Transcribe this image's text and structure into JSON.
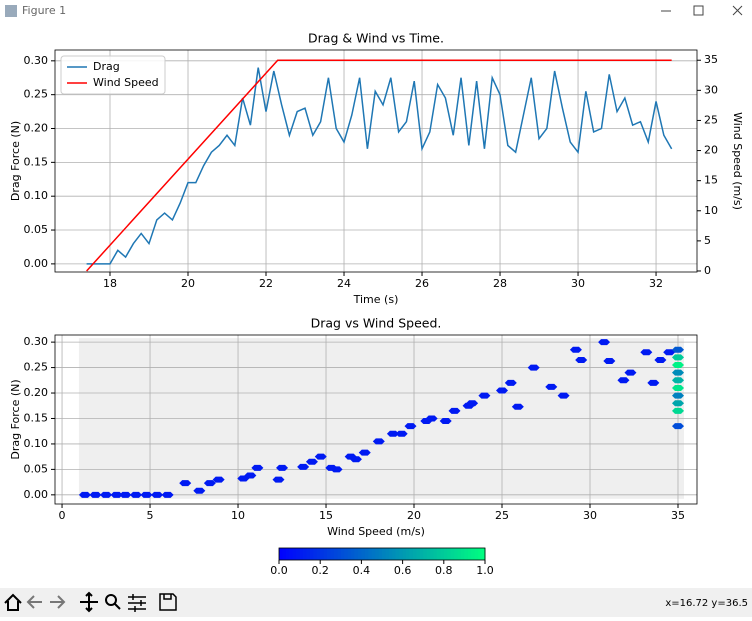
{
  "window_title": "Figure 1",
  "status": "x=16.72 y=36.5",
  "chart_data": [
    {
      "type": "line",
      "title": "Drag & Wind vs Time.",
      "x_label": "Time (s)",
      "y_label": "Drag Force (N)",
      "y2_label": "Wind Speed (m/s)",
      "grid": true,
      "legend": "upper left",
      "xlim": [
        16.59,
        33.05
      ],
      "xticks": [
        18,
        20,
        22,
        24,
        26,
        28,
        30,
        32
      ],
      "ylim": [
        -0.012,
        0.316
      ],
      "yticks": [
        {
          "value": 0,
          "label": "0.00"
        },
        {
          "value": 0.05,
          "label": "0.05"
        },
        {
          "value": 0.1,
          "label": "0.10"
        },
        {
          "value": 0.15,
          "label": "0.15"
        },
        {
          "value": 0.2,
          "label": "0.20"
        },
        {
          "value": 0.25,
          "label": "0.25"
        },
        {
          "value": 0.3,
          "label": "0.30"
        }
      ],
      "y2lim": [
        -0.17,
        36.7
      ],
      "y2ticks": [
        0,
        5,
        10,
        15,
        20,
        25,
        30,
        35
      ],
      "series": [
        {
          "name": "Drag",
          "color": "#1f77b4",
          "x": [
            17.4,
            17.6,
            17.8,
            18.0,
            18.2,
            18.4,
            18.6,
            18.8,
            19.0,
            19.2,
            19.4,
            19.6,
            19.8,
            20.0,
            20.2,
            20.4,
            20.6,
            20.8,
            21.0,
            21.2,
            21.4,
            21.6,
            21.8,
            22.0,
            22.2,
            22.4,
            22.6,
            22.8,
            23.0,
            23.2,
            23.4,
            23.6,
            23.8,
            24.0,
            24.2,
            24.4,
            24.6,
            24.8,
            25.0,
            25.2,
            25.4,
            25.6,
            25.8,
            26.0,
            26.2,
            26.4,
            26.6,
            26.8,
            27.0,
            27.2,
            27.4,
            27.6,
            27.8,
            28.0,
            28.2,
            28.4,
            28.6,
            28.8,
            29.0,
            29.2,
            29.4,
            29.6,
            29.8,
            30.0,
            30.2,
            30.4,
            30.6,
            30.8,
            31.0,
            31.2,
            31.4,
            31.6,
            31.8,
            32.0,
            32.2,
            32.4
          ],
          "values": [
            0,
            0,
            0,
            0,
            0.02,
            0.01,
            0.03,
            0.045,
            0.03,
            0.065,
            0.075,
            0.065,
            0.09,
            0.12,
            0.12,
            0.145,
            0.165,
            0.175,
            0.19,
            0.175,
            0.245,
            0.205,
            0.29,
            0.225,
            0.285,
            0.235,
            0.19,
            0.225,
            0.23,
            0.19,
            0.21,
            0.275,
            0.2,
            0.18,
            0.22,
            0.275,
            0.17,
            0.255,
            0.235,
            0.275,
            0.195,
            0.21,
            0.27,
            0.17,
            0.195,
            0.265,
            0.245,
            0.19,
            0.275,
            0.175,
            0.27,
            0.17,
            0.275,
            0.25,
            0.175,
            0.165,
            0.22,
            0.275,
            0.185,
            0.2,
            0.285,
            0.23,
            0.18,
            0.165,
            0.255,
            0.195,
            0.2,
            0.28,
            0.225,
            0.245,
            0.205,
            0.21,
            0.18,
            0.24,
            0.19,
            0.17
          ]
        },
        {
          "name": "Wind Speed",
          "color": "#ff0000",
          "axis": "y2",
          "x": [
            17.4,
            22.3,
            32.4
          ],
          "values": [
            0,
            35,
            35
          ]
        }
      ]
    },
    {
      "type": "hexbin",
      "title": "Drag vs Wind Speed.",
      "x_label": "Wind Speed (m/s)",
      "y_label": "Drag Force (N)",
      "grid": true,
      "empty_color": "#efefef",
      "colormap": "winter",
      "xlim": [
        -0.4,
        36.08
      ],
      "xticks": [
        0,
        5,
        10,
        15,
        20,
        25,
        30,
        35
      ],
      "ylim": [
        -0.018,
        0.314
      ],
      "yticks": [
        {
          "value": 0,
          "label": "0.00"
        },
        {
          "value": 0.05,
          "label": "0.05"
        },
        {
          "value": 0.1,
          "label": "0.10"
        },
        {
          "value": 0.15,
          "label": "0.15"
        },
        {
          "value": 0.2,
          "label": "0.20"
        },
        {
          "value": 0.25,
          "label": "0.25"
        },
        {
          "value": 0.3,
          "label": "0.30"
        }
      ],
      "x": [
        1.3,
        1.9,
        2.5,
        3.1,
        3.6,
        4.2,
        4.8,
        5.4,
        6.0,
        7.0,
        7.8,
        8.4,
        8.9,
        10.3,
        10.7,
        11.1,
        12.3,
        12.5,
        13.7,
        14.2,
        14.7,
        15.3,
        15.6,
        16.4,
        16.7,
        17.2,
        18.0,
        18.8,
        19.3,
        19.8,
        20.7,
        21.0,
        21.8,
        22.3,
        23.1,
        23.3,
        24.0,
        25.0,
        25.5,
        25.9,
        26.8,
        27.8,
        28.5,
        29.2,
        29.5,
        30.8,
        31.1,
        31.9,
        32.3,
        33.2,
        33.6,
        34.0,
        34.5,
        35,
        35,
        35,
        35,
        35,
        35,
        35,
        35,
        35,
        35
      ],
      "values": [
        0,
        0,
        0,
        0,
        0,
        0,
        0,
        0,
        0,
        0.023,
        0.008,
        0.023,
        0.03,
        0.032,
        0.038,
        0.053,
        0.03,
        0.053,
        0.055,
        0.065,
        0.075,
        0.053,
        0.05,
        0.075,
        0.07,
        0.083,
        0.105,
        0.12,
        0.12,
        0.135,
        0.145,
        0.15,
        0.145,
        0.165,
        0.175,
        0.18,
        0.195,
        0.205,
        0.22,
        0.173,
        0.25,
        0.212,
        0.195,
        0.285,
        0.265,
        0.3,
        0.263,
        0.225,
        0.24,
        0.28,
        0.22,
        0.265,
        0.28,
        0.285,
        0.27,
        0.255,
        0.24,
        0.225,
        0.21,
        0.195,
        0.18,
        0.165,
        0.135
      ],
      "c": [
        0.1,
        0.1,
        0.1,
        0.1,
        0.1,
        0.1,
        0.1,
        0.1,
        0.1,
        0.1,
        0.1,
        0.1,
        0.1,
        0.1,
        0.1,
        0.1,
        0.1,
        0.1,
        0.1,
        0.1,
        0.1,
        0.1,
        0.1,
        0.1,
        0.1,
        0.1,
        0.1,
        0.1,
        0.1,
        0.1,
        0.1,
        0.1,
        0.1,
        0.1,
        0.1,
        0.1,
        0.1,
        0.1,
        0.1,
        0.1,
        0.1,
        0.1,
        0.1,
        0.1,
        0.1,
        0.1,
        0.1,
        0.1,
        0.1,
        0.1,
        0.1,
        0.1,
        0.1,
        0.35,
        0.8,
        0.95,
        0.55,
        0.7,
        0.9,
        0.5,
        0.65,
        0.85,
        0.3
      ],
      "colorbar": {
        "clim": [
          0,
          1
        ],
        "ticks": [
          {
            "value": 0,
            "label": "0.0"
          },
          {
            "value": 0.2,
            "label": "0.2"
          },
          {
            "value": 0.4,
            "label": "0.4"
          },
          {
            "value": 0.6,
            "label": "0.6"
          },
          {
            "value": 0.8,
            "label": "0.8"
          },
          {
            "value": 1,
            "label": "1.0"
          }
        ]
      }
    }
  ]
}
